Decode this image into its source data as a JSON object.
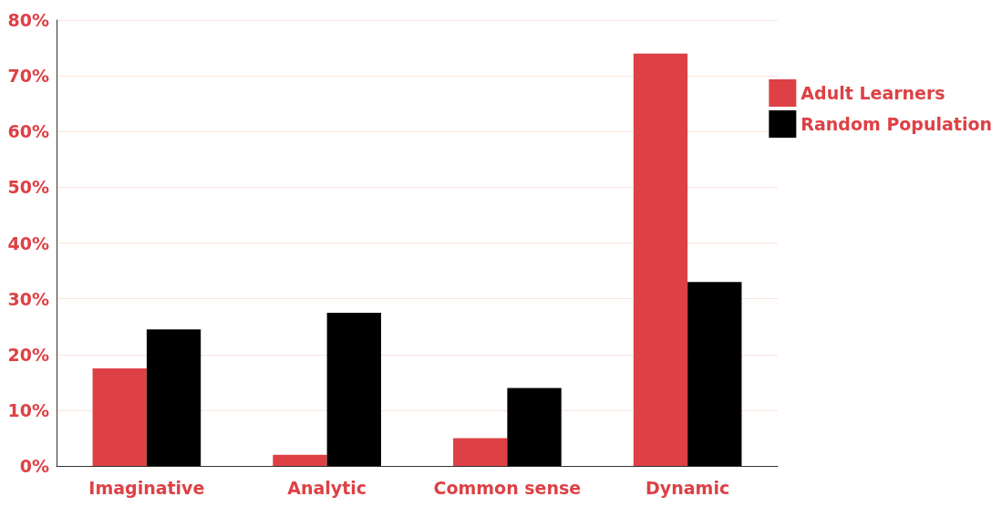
{
  "chart_data": {
    "type": "bar",
    "categories": [
      "Imaginative",
      "Analytic",
      "Common sense",
      "Dynamic"
    ],
    "series": [
      {
        "name": "Adult Learners",
        "color": "#dd4145",
        "values": [
          17.5,
          2,
          5,
          74
        ]
      },
      {
        "name": "Random Population",
        "color": "#000000",
        "values": [
          24.5,
          27.5,
          14,
          33
        ]
      }
    ],
    "ylim": [
      0,
      80
    ],
    "yticks": [
      {
        "value": 0,
        "label": "0%"
      },
      {
        "value": 10,
        "label": "10%"
      },
      {
        "value": 20,
        "label": "20%"
      },
      {
        "value": 30,
        "label": "30%"
      },
      {
        "value": 40,
        "label": "40%"
      },
      {
        "value": 50,
        "label": "50%"
      },
      {
        "value": 60,
        "label": "60%"
      },
      {
        "value": 70,
        "label": "70%"
      },
      {
        "value": 80,
        "label": "80%"
      }
    ],
    "grid": "y",
    "legend": "top right"
  }
}
